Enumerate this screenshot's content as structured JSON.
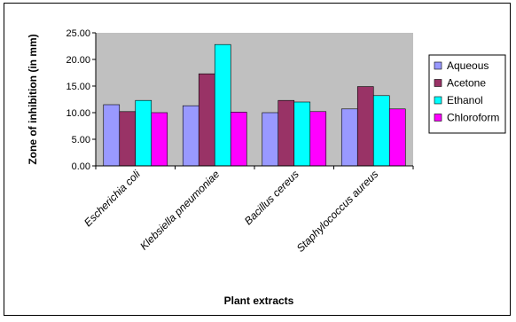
{
  "chart_data": {
    "type": "bar",
    "xlabel": "Plant extracts",
    "ylabel": "Zone of inhibition (in mm)",
    "ylim": [
      0,
      25
    ],
    "yticks": [
      "0.00",
      "5.00",
      "10.00",
      "15.00",
      "20.00",
      "25.00"
    ],
    "grid": false,
    "legend_position": "right",
    "plot_background": "#c0c0c0",
    "categories": [
      "Escherichia coli",
      "Klebsiella pneumoniae",
      "Bacillus cereus",
      "Staphylococcus aureus"
    ],
    "series": [
      {
        "name": "Aqueous",
        "color": "#9999ff",
        "values": [
          11.5,
          11.3,
          10.0,
          10.7
        ]
      },
      {
        "name": "Acetone",
        "color": "#993366",
        "values": [
          10.2,
          17.3,
          12.3,
          14.9
        ]
      },
      {
        "name": "Ethanol",
        "color": "#00ffff",
        "values": [
          12.3,
          22.8,
          12.0,
          13.2
        ]
      },
      {
        "name": "Chloroform",
        "color": "#ff00ff",
        "values": [
          10.0,
          10.1,
          10.2,
          10.7
        ]
      }
    ]
  }
}
